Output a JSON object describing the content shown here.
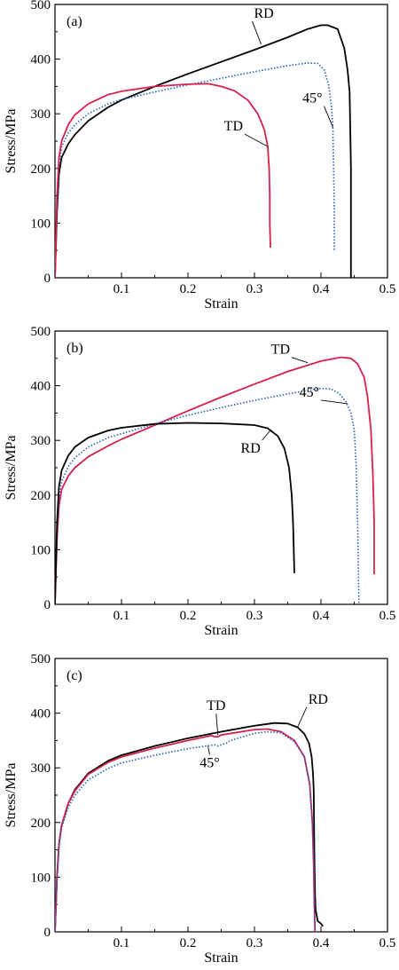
{
  "chart_data": [
    {
      "type": "line",
      "panel_label": "(a)",
      "xlabel": "Strain",
      "ylabel": "Stress/MPa",
      "xlim": [
        0,
        0.5
      ],
      "ylim": [
        0,
        500
      ],
      "xticks": [
        "0.1",
        "0.2",
        "0.3",
        "0.4",
        "0.5"
      ],
      "yticks": [
        "0",
        "100",
        "200",
        "300",
        "400",
        "500"
      ],
      "grid": false,
      "series": [
        {
          "name": "RD",
          "color": "#000000",
          "dash": "solid",
          "x": [
            0,
            0.003,
            0.006,
            0.01,
            0.02,
            0.03,
            0.05,
            0.08,
            0.1,
            0.15,
            0.2,
            0.25,
            0.3,
            0.35,
            0.38,
            0.4,
            0.41,
            0.425,
            0.435,
            0.44,
            0.443,
            0.445,
            0.445
          ],
          "y": [
            0,
            120,
            190,
            220,
            245,
            262,
            287,
            312,
            325,
            350,
            373,
            395,
            417,
            440,
            455,
            462,
            462,
            455,
            420,
            380,
            340,
            200,
            0
          ]
        },
        {
          "name": "45°",
          "color": "#1f5fc0",
          "dash": "dotted",
          "x": [
            0,
            0.003,
            0.006,
            0.01,
            0.02,
            0.03,
            0.05,
            0.08,
            0.1,
            0.15,
            0.2,
            0.25,
            0.3,
            0.35,
            0.38,
            0.395,
            0.405,
            0.412,
            0.416,
            0.418,
            0.419,
            0.42,
            0.42
          ],
          "y": [
            0,
            130,
            205,
            240,
            265,
            280,
            300,
            318,
            326,
            340,
            353,
            365,
            377,
            388,
            393,
            392,
            380,
            350,
            310,
            270,
            200,
            120,
            50
          ]
        },
        {
          "name": "TD",
          "color": "#d6204e",
          "dash": "solid",
          "x": [
            0,
            0.003,
            0.006,
            0.01,
            0.02,
            0.03,
            0.05,
            0.08,
            0.1,
            0.15,
            0.2,
            0.23,
            0.25,
            0.27,
            0.29,
            0.305,
            0.315,
            0.32,
            0.322,
            0.323,
            0.323,
            0.324
          ],
          "y": [
            0,
            150,
            220,
            250,
            280,
            298,
            318,
            335,
            341,
            350,
            354,
            355,
            350,
            342,
            325,
            300,
            270,
            240,
            200,
            150,
            100,
            55
          ]
        }
      ],
      "annotations": [
        {
          "text": "RD",
          "series": "RD",
          "x": 0.31,
          "y": 427
        },
        {
          "text": "45°",
          "series": "45°",
          "x": 0.418,
          "y": 275
        },
        {
          "text": "TD",
          "series": "TD",
          "x": 0.32,
          "y": 240
        }
      ]
    },
    {
      "type": "line",
      "panel_label": "(b)",
      "xlabel": "Strain",
      "ylabel": "Stress/MPa",
      "xlim": [
        0,
        0.5
      ],
      "ylim": [
        0,
        500
      ],
      "xticks": [
        "0.1",
        "0.2",
        "0.3",
        "0.4",
        "0.5"
      ],
      "yticks": [
        "0",
        "100",
        "200",
        "300",
        "400",
        "500"
      ],
      "grid": false,
      "series": [
        {
          "name": "TD",
          "color": "#d6204e",
          "dash": "solid",
          "x": [
            0,
            0.003,
            0.006,
            0.01,
            0.02,
            0.03,
            0.05,
            0.08,
            0.1,
            0.15,
            0.2,
            0.25,
            0.3,
            0.35,
            0.4,
            0.43,
            0.445,
            0.455,
            0.465,
            0.47,
            0.475,
            0.478,
            0.48,
            0.48
          ],
          "y": [
            0,
            120,
            180,
            210,
            235,
            250,
            270,
            290,
            302,
            328,
            354,
            379,
            403,
            426,
            445,
            452,
            450,
            440,
            415,
            380,
            320,
            240,
            150,
            55
          ]
        },
        {
          "name": "45°",
          "color": "#1f5fc0",
          "dash": "dotted",
          "x": [
            0,
            0.003,
            0.006,
            0.01,
            0.02,
            0.03,
            0.05,
            0.08,
            0.1,
            0.15,
            0.2,
            0.25,
            0.3,
            0.35,
            0.38,
            0.4,
            0.415,
            0.428,
            0.438,
            0.445,
            0.45,
            0.453,
            0.455,
            0.456,
            0.457
          ],
          "y": [
            0,
            130,
            195,
            225,
            252,
            268,
            288,
            305,
            312,
            330,
            346,
            360,
            373,
            385,
            391,
            395,
            394,
            385,
            370,
            350,
            320,
            250,
            150,
            80,
            0
          ]
        },
        {
          "name": "RD",
          "color": "#000000",
          "dash": "solid",
          "x": [
            0,
            0.003,
            0.006,
            0.01,
            0.02,
            0.03,
            0.05,
            0.08,
            0.1,
            0.15,
            0.2,
            0.25,
            0.3,
            0.32,
            0.335,
            0.345,
            0.352,
            0.356,
            0.358,
            0.359,
            0.36
          ],
          "y": [
            0,
            150,
            215,
            245,
            272,
            288,
            305,
            318,
            323,
            330,
            332,
            331,
            328,
            322,
            308,
            285,
            250,
            200,
            150,
            100,
            57
          ]
        }
      ],
      "annotations": [
        {
          "text": "TD",
          "series": "TD",
          "x": 0.38,
          "y": 442
        },
        {
          "text": "45°",
          "series": "45°",
          "x": 0.44,
          "y": 367
        },
        {
          "text": "RD",
          "series": "RD",
          "x": 0.325,
          "y": 320
        }
      ]
    },
    {
      "type": "line",
      "panel_label": "(c)",
      "xlabel": "Strain",
      "ylabel": "Stress/MPa",
      "xlim": [
        0,
        0.5
      ],
      "ylim": [
        0,
        500
      ],
      "xticks": [
        "0.1",
        "0.2",
        "0.3",
        "0.4",
        "0.5"
      ],
      "yticks": [
        "0",
        "100",
        "200",
        "300",
        "400",
        "500"
      ],
      "grid": false,
      "series": [
        {
          "name": "RD",
          "color": "#000000",
          "dash": "solid",
          "x": [
            0,
            0.003,
            0.006,
            0.01,
            0.02,
            0.03,
            0.05,
            0.08,
            0.1,
            0.15,
            0.2,
            0.25,
            0.3,
            0.33,
            0.35,
            0.365,
            0.375,
            0.382,
            0.386,
            0.388,
            0.389,
            0.39,
            0.391,
            0.392,
            0.395,
            0.4,
            0.403
          ],
          "y": [
            0,
            100,
            160,
            195,
            235,
            260,
            290,
            313,
            323,
            340,
            354,
            366,
            377,
            382,
            381,
            374,
            362,
            345,
            320,
            290,
            260,
            150,
            70,
            40,
            20,
            15,
            10
          ]
        },
        {
          "name": "TD",
          "color": "#d6204e",
          "dash": "solid",
          "x": [
            0,
            0.003,
            0.006,
            0.01,
            0.02,
            0.03,
            0.05,
            0.08,
            0.1,
            0.15,
            0.2,
            0.235,
            0.24,
            0.245,
            0.25,
            0.3,
            0.32,
            0.34,
            0.36,
            0.375,
            0.383,
            0.387,
            0.389,
            0.39,
            0.391
          ],
          "y": [
            0,
            100,
            160,
            195,
            235,
            258,
            288,
            310,
            320,
            336,
            350,
            359,
            357,
            357,
            360,
            370,
            371,
            366,
            350,
            320,
            270,
            200,
            120,
            50,
            0
          ]
        },
        {
          "name": "45°",
          "color": "#1f5fc0",
          "dash": "dotted",
          "x": [
            0,
            0.003,
            0.006,
            0.01,
            0.02,
            0.03,
            0.05,
            0.08,
            0.1,
            0.15,
            0.2,
            0.24,
            0.245,
            0.25,
            0.26,
            0.262,
            0.28,
            0.3,
            0.32,
            0.34,
            0.36,
            0.375,
            0.383,
            0.387,
            0.389,
            0.39,
            0.391
          ],
          "y": [
            0,
            95,
            155,
            190,
            228,
            250,
            278,
            299,
            309,
            323,
            335,
            342,
            340,
            342,
            346,
            349,
            356,
            363,
            366,
            364,
            348,
            320,
            270,
            200,
            120,
            50,
            0
          ]
        }
      ],
      "annotations": [
        {
          "text": "TD",
          "series": "TD",
          "x": 0.245,
          "y": 360
        },
        {
          "text": "RD",
          "series": "RD",
          "x": 0.365,
          "y": 375
        },
        {
          "text": "45°",
          "series": "45°",
          "x": 0.23,
          "y": 340
        }
      ]
    }
  ]
}
